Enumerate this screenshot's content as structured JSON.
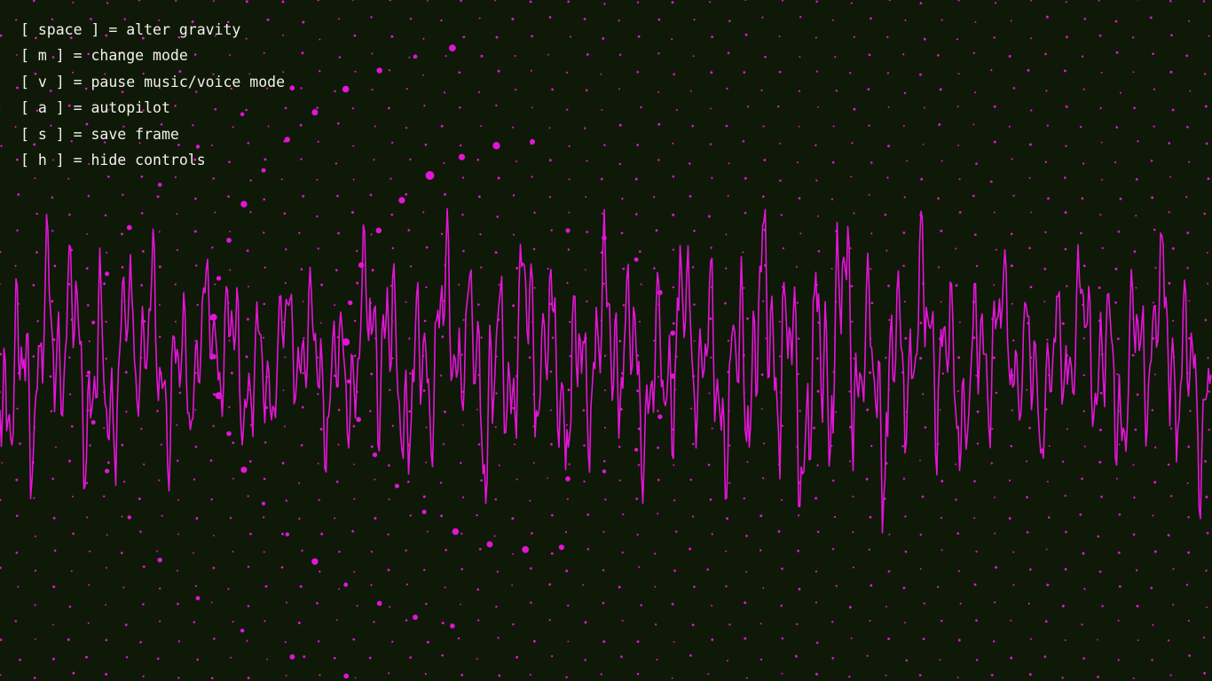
{
  "controls": {
    "items": [
      {
        "key": "space",
        "action": "alter gravity"
      },
      {
        "key": "m",
        "action": "change mode"
      },
      {
        "key": "v",
        "action": "pause music/voice mode"
      },
      {
        "key": "a",
        "action": "autopilot"
      },
      {
        "key": "s",
        "action": "save frame"
      },
      {
        "key": "h",
        "action": "hide controls"
      }
    ]
  },
  "colors": {
    "background": "#0f1907",
    "accent": "#e414d8",
    "text": "#f2f2ea"
  }
}
